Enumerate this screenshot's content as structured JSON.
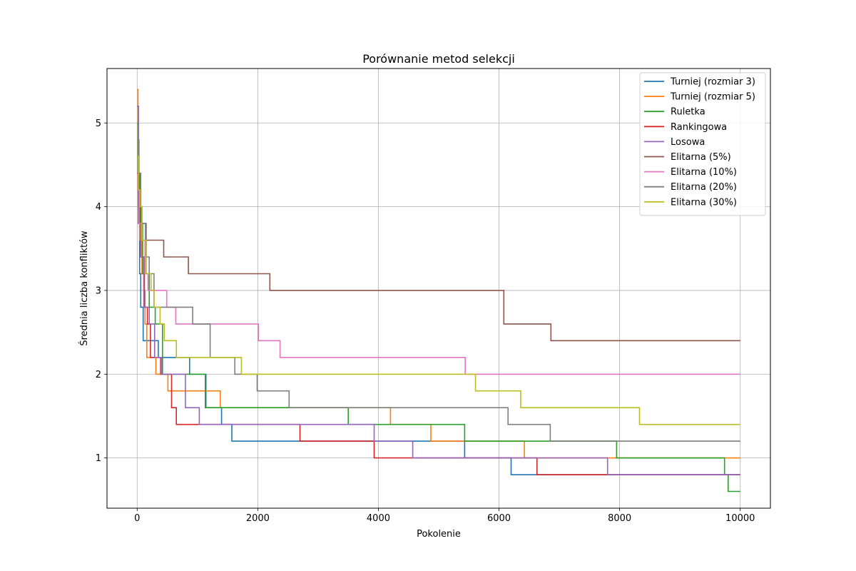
{
  "chart_data": {
    "type": "line",
    "step": true,
    "title": "Porównanie metod selekcji",
    "xlabel": "Pokolenie",
    "ylabel": "Średnia liczba konfliktów",
    "xlim": [
      -500,
      10500
    ],
    "ylim": [
      0.4,
      5.65
    ],
    "xticks": [
      0,
      2000,
      4000,
      6000,
      8000,
      10000
    ],
    "xtick_labels": [
      "0",
      "2000",
      "4000",
      "6000",
      "8000",
      "10000"
    ],
    "yticks": [
      1,
      2,
      3,
      4,
      5
    ],
    "ytick_labels": [
      "1",
      "2",
      "3",
      "4",
      "5"
    ],
    "grid": true,
    "legend_position": "top-right",
    "series": [
      {
        "name": "Turniej (rozmiar 3)",
        "color": "#1f77b4",
        "points": [
          [
            0,
            5.2
          ],
          [
            20,
            4.0
          ],
          [
            40,
            3.2
          ],
          [
            60,
            2.8
          ],
          [
            100,
            2.4
          ],
          [
            350,
            2.2
          ],
          [
            870,
            2.0
          ],
          [
            1140,
            1.6
          ],
          [
            1400,
            1.4
          ],
          [
            1570,
            1.2
          ],
          [
            5430,
            1.0
          ],
          [
            6200,
            0.8
          ],
          [
            10000,
            0.8
          ]
        ]
      },
      {
        "name": "Turniej (rozmiar 5)",
        "color": "#ff7f0e",
        "points": [
          [
            0,
            5.4
          ],
          [
            15,
            4.2
          ],
          [
            40,
            3.6
          ],
          [
            80,
            3.2
          ],
          [
            110,
            3.0
          ],
          [
            130,
            2.6
          ],
          [
            160,
            2.2
          ],
          [
            310,
            2.0
          ],
          [
            510,
            1.8
          ],
          [
            1380,
            1.6
          ],
          [
            4200,
            1.4
          ],
          [
            4870,
            1.2
          ],
          [
            6420,
            1.0
          ],
          [
            10000,
            1.0
          ]
        ]
      },
      {
        "name": "Ruletka",
        "color": "#2ca02c",
        "points": [
          [
            0,
            5.0
          ],
          [
            15,
            4.4
          ],
          [
            40,
            3.8
          ],
          [
            90,
            3.2
          ],
          [
            200,
            2.8
          ],
          [
            300,
            2.6
          ],
          [
            420,
            2.0
          ],
          [
            1130,
            1.6
          ],
          [
            3500,
            1.4
          ],
          [
            5430,
            1.2
          ],
          [
            7950,
            1.0
          ],
          [
            9740,
            0.8
          ],
          [
            9800,
            0.6
          ],
          [
            10000,
            0.6
          ]
        ]
      },
      {
        "name": "Rankingowa",
        "color": "#d62728",
        "points": [
          [
            0,
            4.4
          ],
          [
            20,
            3.8
          ],
          [
            60,
            3.4
          ],
          [
            120,
            2.8
          ],
          [
            170,
            2.6
          ],
          [
            220,
            2.2
          ],
          [
            390,
            2.0
          ],
          [
            570,
            1.6
          ],
          [
            650,
            1.4
          ],
          [
            2700,
            1.2
          ],
          [
            3930,
            1.0
          ],
          [
            4560,
            1.0
          ],
          [
            6630,
            0.8
          ],
          [
            10000,
            0.8
          ]
        ]
      },
      {
        "name": "Losowa",
        "color": "#9467bd",
        "points": [
          [
            0,
            5.2
          ],
          [
            20,
            4.2
          ],
          [
            60,
            3.4
          ],
          [
            110,
            2.8
          ],
          [
            200,
            2.6
          ],
          [
            290,
            2.2
          ],
          [
            400,
            2.0
          ],
          [
            800,
            1.6
          ],
          [
            1030,
            1.4
          ],
          [
            3930,
            1.2
          ],
          [
            4570,
            1.0
          ],
          [
            7800,
            0.8
          ],
          [
            10000,
            0.8
          ]
        ]
      },
      {
        "name": "Elitarna (5%)",
        "color": "#8c564b",
        "points": [
          [
            0,
            4.6
          ],
          [
            20,
            4.0
          ],
          [
            60,
            3.8
          ],
          [
            140,
            3.6
          ],
          [
            440,
            3.4
          ],
          [
            850,
            3.2
          ],
          [
            2200,
            3.0
          ],
          [
            6080,
            2.6
          ],
          [
            6860,
            2.4
          ],
          [
            10000,
            2.4
          ]
        ]
      },
      {
        "name": "Elitarna (10%)",
        "color": "#e377c2",
        "points": [
          [
            0,
            4.2
          ],
          [
            30,
            3.8
          ],
          [
            80,
            3.6
          ],
          [
            130,
            3.2
          ],
          [
            180,
            3.0
          ],
          [
            490,
            2.8
          ],
          [
            640,
            2.6
          ],
          [
            2010,
            2.4
          ],
          [
            2370,
            2.2
          ],
          [
            5440,
            2.0
          ],
          [
            10000,
            2.0
          ]
        ]
      },
      {
        "name": "Elitarna (20%)",
        "color": "#7f7f7f",
        "points": [
          [
            0,
            4.6
          ],
          [
            20,
            4.8
          ],
          [
            30,
            4.4
          ],
          [
            60,
            4.0
          ],
          [
            80,
            3.8
          ],
          [
            150,
            3.4
          ],
          [
            200,
            3.2
          ],
          [
            280,
            2.8
          ],
          [
            920,
            2.6
          ],
          [
            1210,
            2.2
          ],
          [
            1620,
            2.0
          ],
          [
            1990,
            1.8
          ],
          [
            2520,
            1.6
          ],
          [
            6150,
            1.4
          ],
          [
            6850,
            1.2
          ],
          [
            10000,
            1.2
          ]
        ]
      },
      {
        "name": "Elitarna (30%)",
        "color": "#bcbd22",
        "points": [
          [
            0,
            4.6
          ],
          [
            20,
            4.2
          ],
          [
            50,
            4.0
          ],
          [
            80,
            3.6
          ],
          [
            150,
            3.2
          ],
          [
            230,
            3.0
          ],
          [
            280,
            2.8
          ],
          [
            380,
            2.6
          ],
          [
            450,
            2.4
          ],
          [
            650,
            2.2
          ],
          [
            1730,
            2.0
          ],
          [
            5610,
            1.8
          ],
          [
            6360,
            1.6
          ],
          [
            8330,
            1.4
          ],
          [
            10000,
            1.4
          ]
        ]
      }
    ]
  }
}
